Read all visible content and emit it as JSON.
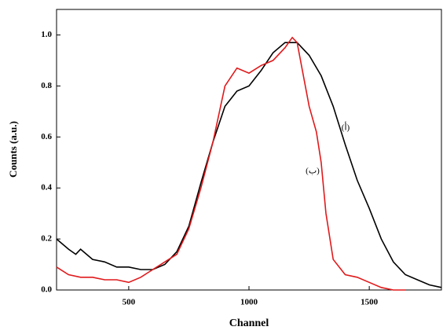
{
  "chart_data": {
    "type": "line",
    "x_label": "Channel",
    "y_label": "Counts (a.u.)",
    "annotations": [
      "(أ)",
      "(ب)"
    ],
    "xlim": [
      200,
      1800
    ],
    "xticks": [
      500,
      1000,
      1500
    ],
    "ylim": [
      0,
      1.1
    ],
    "yticks": [
      {
        "value": 0,
        "label": "0.0"
      },
      0.2,
      0.4,
      0.6,
      0.8,
      {
        "value": 1,
        "label": "1.0"
      }
    ],
    "series": [
      {
        "color": "#000000",
        "x": [
          200,
          250,
          280,
          300,
          350,
          400,
          450,
          500,
          550,
          600,
          650,
          700,
          750,
          800,
          850,
          900,
          950,
          1000,
          1050,
          1100,
          1150,
          1200,
          1250,
          1300,
          1350,
          1400,
          1450,
          1500,
          1550,
          1600,
          1650,
          1700,
          1750,
          1800
        ],
        "values": [
          0.2,
          0.16,
          0.14,
          0.16,
          0.12,
          0.11,
          0.09,
          0.09,
          0.08,
          0.08,
          0.1,
          0.15,
          0.25,
          0.42,
          0.58,
          0.72,
          0.78,
          0.8,
          0.86,
          0.93,
          0.97,
          0.97,
          0.92,
          0.84,
          0.72,
          0.57,
          0.43,
          0.32,
          0.2,
          0.11,
          0.06,
          0.04,
          0.02,
          0.01
        ]
      },
      {
        "color": "#e0191b",
        "x": [
          200,
          250,
          300,
          350,
          400,
          450,
          500,
          550,
          600,
          650,
          700,
          750,
          800,
          850,
          900,
          950,
          1000,
          1050,
          1100,
          1150,
          1180,
          1200,
          1250,
          1280,
          1300,
          1320,
          1350,
          1400,
          1450,
          1500,
          1550,
          1600,
          1650
        ],
        "values": [
          0.09,
          0.06,
          0.05,
          0.05,
          0.04,
          0.04,
          0.03,
          0.05,
          0.08,
          0.11,
          0.14,
          0.24,
          0.4,
          0.58,
          0.8,
          0.87,
          0.85,
          0.88,
          0.9,
          0.95,
          0.99,
          0.97,
          0.72,
          0.62,
          0.5,
          0.3,
          0.12,
          0.06,
          0.05,
          0.03,
          0.01,
          0,
          0
        ]
      }
    ]
  }
}
